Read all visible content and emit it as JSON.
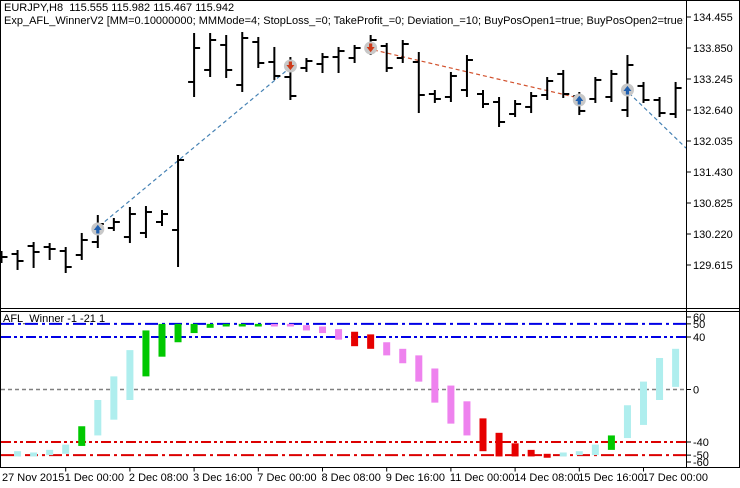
{
  "header": {
    "symbol_line": "EURJPY,H8  115.555 115.982 115.467 115.942",
    "ea_line": "Exp_AFL_WinnerV2 [MM=0.10000000; MMMode=4; StopLoss_=0; TakeProfit_=0; Deviation_=10; BuyPosOpen1=true; BuyPosOpen2=true; SellPosOpen1=true;"
  },
  "indicator_label": "AFL_Winner -1 -21 1",
  "colors": {
    "background": "#ffffff",
    "bar": "#000000",
    "border": "#000000",
    "text": "#000000",
    "buy_line": "#4682B4",
    "sell_line": "#D2522E",
    "buy_arrow": "#1F5FAF",
    "sell_arrow": "#CC3A1A",
    "marker_circle": "#C8C8C8",
    "level_blue": "#0000E6",
    "level_red": "#DC0000",
    "level_gray": "#808080",
    "hist_paleblue": "#AFEEEE",
    "hist_green": "#00C800",
    "hist_violet": "#EE82EE",
    "hist_red": "#E60000"
  },
  "chart_data": [
    {
      "type": "ohlc-bars",
      "title": "EURJPY,H8",
      "y_axis": {
        "ticks": [
          "134.455",
          "133.850",
          "133.245",
          "132.640",
          "132.035",
          "131.430",
          "130.825",
          "130.220",
          "129.615"
        ],
        "range": [
          129.42,
          134.5
        ]
      },
      "x_axis": {
        "labels": [
          "27 Nov 2015",
          "1 Dec 00:00",
          "2 Dec 08:00",
          "3 Dec 16:00",
          "7 Dec 00:00",
          "8 Dec 08:00",
          "9 Dec 16:00",
          "11 Dec 00:00",
          "14 Dec 08:00",
          "15 Dec 16:00",
          "17 Dec 00:00"
        ],
        "label_every_n_bars": 4
      },
      "bars": [
        [
          129.771,
          129.888,
          129.654,
          129.771
        ],
        [
          129.83,
          129.908,
          129.518,
          129.693
        ],
        [
          129.986,
          130.064,
          129.557,
          129.869
        ],
        [
          129.966,
          130.044,
          129.713,
          129.927
        ],
        [
          129.888,
          129.966,
          129.459,
          129.576
        ],
        [
          129.81,
          130.24,
          129.713,
          130.103
        ],
        [
          130.064,
          130.591,
          129.947,
          130.415
        ],
        [
          130.337,
          130.532,
          130.279,
          130.454
        ],
        [
          130.161,
          130.747,
          130.044,
          130.61
        ],
        [
          130.24,
          130.766,
          130.142,
          130.649
        ],
        [
          130.454,
          130.688,
          130.376,
          130.61
        ],
        [
          130.298,
          131.762,
          129.576,
          131.664
        ],
        [
          133.187,
          134.143,
          132.894,
          133.85
        ],
        [
          133.421,
          134.143,
          133.284,
          134.006
        ],
        [
          133.909,
          134.104,
          133.265,
          133.421
        ],
        [
          133.128,
          134.162,
          132.991,
          134.045
        ],
        [
          133.967,
          134.065,
          133.46,
          133.557
        ],
        [
          133.577,
          133.87,
          133.226,
          133.304
        ],
        [
          133.284,
          133.674,
          132.835,
          132.913
        ],
        [
          133.46,
          133.655,
          133.382,
          133.596
        ],
        [
          133.538,
          133.752,
          133.362,
          133.674
        ],
        [
          133.674,
          133.87,
          133.362,
          133.791
        ],
        [
          133.655,
          133.909,
          133.557,
          133.85
        ],
        [
          133.85,
          134.104,
          133.713,
          134.006
        ],
        [
          133.889,
          133.948,
          133.382,
          133.46
        ],
        [
          133.655,
          134.006,
          133.557,
          133.928
        ],
        [
          133.577,
          133.772,
          132.581,
          132.933
        ],
        [
          132.952,
          133.03,
          132.777,
          132.855
        ],
        [
          132.894,
          133.382,
          132.796,
          133.304
        ],
        [
          133.03,
          133.713,
          132.894,
          133.616
        ],
        [
          132.952,
          133.03,
          132.679,
          132.757
        ],
        [
          132.796,
          132.894,
          132.308,
          132.406
        ],
        [
          132.562,
          132.835,
          132.503,
          132.757
        ],
        [
          132.699,
          132.991,
          132.581,
          132.913
        ],
        [
          132.933,
          133.284,
          132.835,
          133.206
        ],
        [
          133.343,
          133.421,
          132.874,
          132.952
        ],
        [
          132.913,
          132.991,
          132.542,
          132.621
        ],
        [
          132.855,
          133.284,
          132.777,
          133.226
        ],
        [
          132.894,
          133.421,
          132.796,
          133.343
        ],
        [
          132.64,
          133.713,
          132.503,
          133.518
        ],
        [
          133.109,
          133.187,
          132.777,
          132.835
        ],
        [
          132.835,
          132.894,
          132.503,
          132.581
        ],
        [
          132.562,
          133.187,
          132.484,
          133.069
        ]
      ],
      "signals": [
        {
          "bar": 6,
          "type": "buy",
          "price": 130.318
        },
        {
          "bar": 18,
          "type": "sell",
          "price": 133.499
        },
        {
          "bar": 23,
          "type": "sell",
          "price": 133.85
        },
        {
          "bar": 36,
          "type": "buy",
          "price": 132.835
        },
        {
          "bar": 39,
          "type": "buy",
          "price": 133.03
        }
      ],
      "trend_lines": [
        {
          "from_bar": 6.1,
          "from_price": 130.376,
          "to_bar": 17.8,
          "to_price": 133.421,
          "color_key": "buy_line"
        },
        {
          "from_bar": 23.2,
          "from_price": 133.811,
          "to_bar": 35.7,
          "to_price": 132.894,
          "color_key": "sell_line"
        },
        {
          "from_bar": 39.1,
          "from_price": 132.971,
          "to_bar": 42.7,
          "to_price": 131.898,
          "color_key": "buy_line"
        }
      ]
    },
    {
      "type": "histogram-range",
      "title": "AFL_Winner -1 -21 1",
      "y_axis": {
        "ticks": [
          60,
          50,
          40,
          0,
          -40,
          -50,
          -60
        ],
        "range": [
          -60,
          60
        ]
      },
      "levels": [
        {
          "value": 50,
          "color_key": "level_blue",
          "style": "dash-dot"
        },
        {
          "value": 40,
          "color_key": "level_blue",
          "style": "dash-dot-dot"
        },
        {
          "value": 0,
          "color_key": "level_gray",
          "style": "dash"
        },
        {
          "value": -40,
          "color_key": "level_red",
          "style": "dash-dot-dot"
        },
        {
          "value": -50,
          "color_key": "level_red",
          "style": "dash-dot"
        }
      ],
      "bars": [
        [
          1,
          -47,
          -51,
          "hist_paleblue"
        ],
        [
          2,
          -48,
          -51,
          "hist_paleblue"
        ],
        [
          3,
          -46,
          -50,
          "hist_paleblue"
        ],
        [
          4,
          -42,
          -49,
          "hist_paleblue"
        ],
        [
          5,
          -28,
          -43,
          "hist_green"
        ],
        [
          6,
          -8,
          -35,
          "hist_paleblue"
        ],
        [
          7,
          10,
          -23,
          "hist_paleblue"
        ],
        [
          8,
          30,
          -8,
          "hist_paleblue"
        ],
        [
          9,
          45,
          10,
          "hist_green"
        ],
        [
          10,
          50,
          25,
          "hist_green"
        ],
        [
          11,
          50,
          36,
          "hist_green"
        ],
        [
          12,
          50,
          43,
          "hist_green"
        ],
        [
          13,
          50,
          47,
          "hist_green"
        ],
        [
          14,
          50,
          48,
          "hist_green"
        ],
        [
          15,
          50,
          48,
          "hist_green"
        ],
        [
          16,
          50,
          48,
          "hist_green"
        ],
        [
          17,
          50,
          48,
          "hist_violet"
        ],
        [
          18,
          50,
          48,
          "hist_violet"
        ],
        [
          19,
          49,
          45,
          "hist_violet"
        ],
        [
          20,
          48,
          43,
          "hist_violet"
        ],
        [
          21,
          46,
          38,
          "hist_violet"
        ],
        [
          22,
          44,
          33,
          "hist_red"
        ],
        [
          23,
          42,
          31,
          "hist_red"
        ],
        [
          24,
          36,
          26,
          "hist_violet"
        ],
        [
          25,
          31,
          20,
          "hist_violet"
        ],
        [
          26,
          26,
          6,
          "hist_violet"
        ],
        [
          27,
          16,
          -10,
          "hist_violet"
        ],
        [
          28,
          3,
          -26,
          "hist_violet"
        ],
        [
          29,
          -9,
          -35,
          "hist_violet"
        ],
        [
          30,
          -22,
          -47,
          "hist_red"
        ],
        [
          31,
          -33,
          -51,
          "hist_red"
        ],
        [
          32,
          -41,
          -51,
          "hist_red"
        ],
        [
          33,
          -46,
          -51,
          "hist_red"
        ],
        [
          34,
          -49,
          -52,
          "hist_red"
        ],
        [
          35,
          -48,
          -51,
          "hist_paleblue"
        ],
        [
          36,
          -47,
          -50,
          "hist_paleblue"
        ],
        [
          37,
          -42,
          -50,
          "hist_paleblue"
        ],
        [
          38,
          -35,
          -46,
          "hist_green"
        ],
        [
          39,
          -12,
          -37,
          "hist_paleblue"
        ],
        [
          40,
          6,
          -27,
          "hist_paleblue"
        ],
        [
          41,
          24,
          -8,
          "hist_paleblue"
        ],
        [
          42,
          31,
          2,
          "hist_paleblue"
        ]
      ]
    }
  ]
}
